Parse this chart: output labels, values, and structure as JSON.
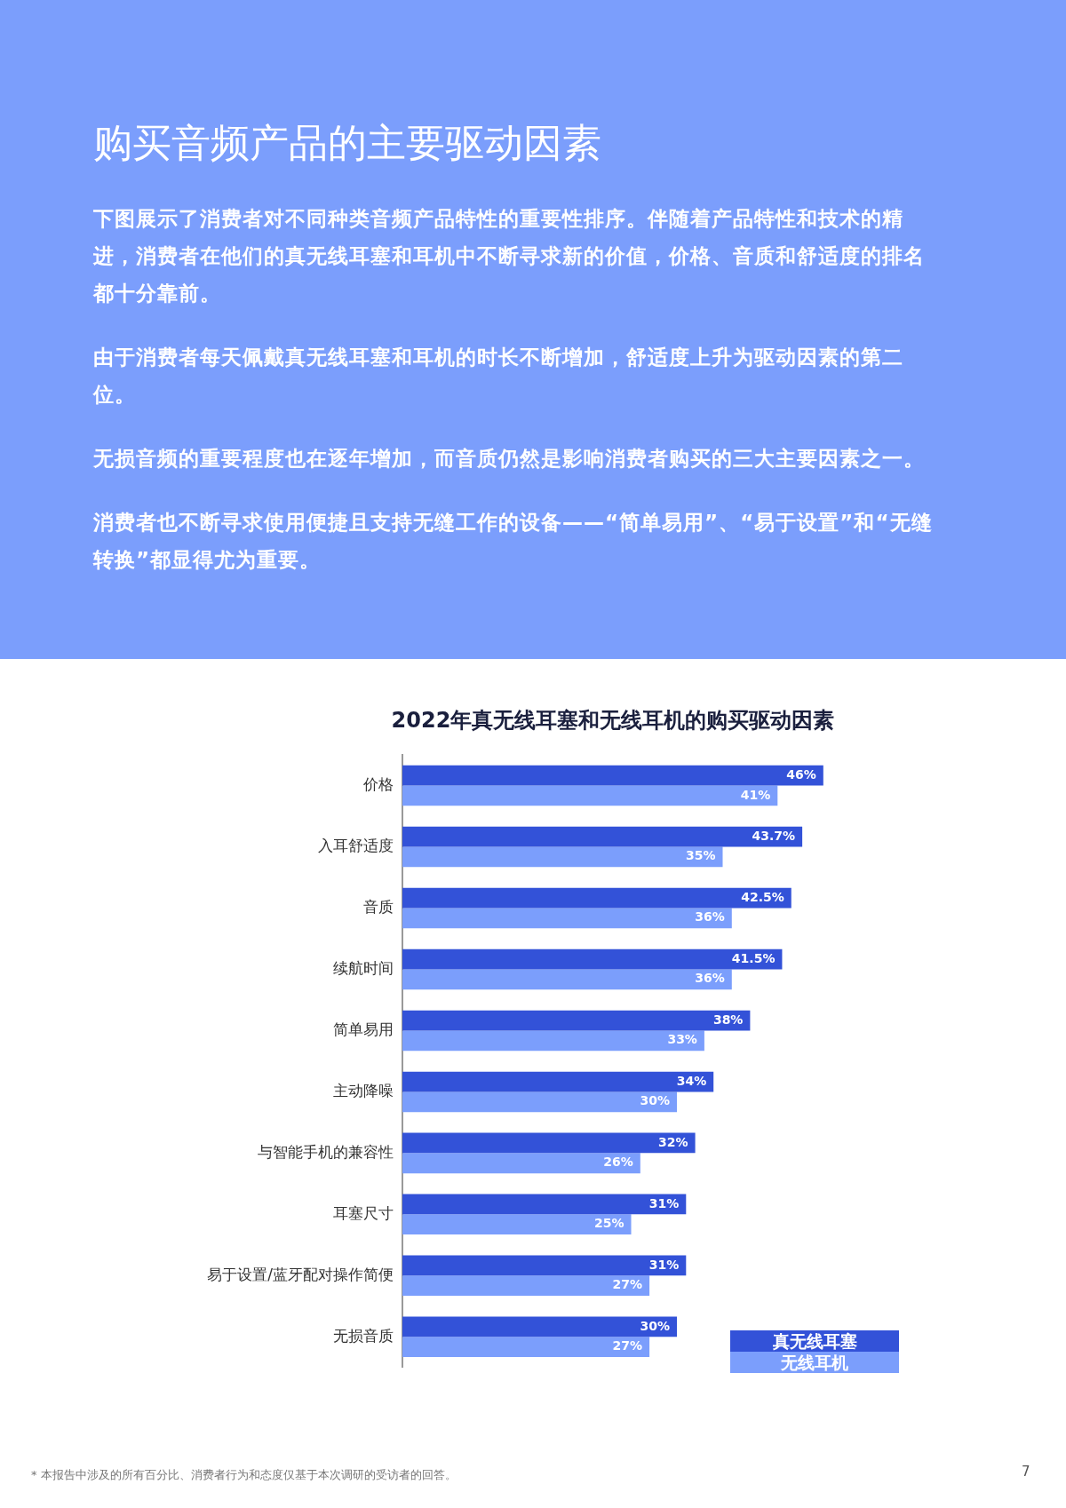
{
  "chart_data": {
    "type": "bar",
    "orientation": "horizontal",
    "title": "2022年真无线耳塞和无线耳机的购买驱动因素",
    "subtitle": "购买音频产品的主要驱动因素",
    "annotations": [
      "下图展示了消费者对不同种类音频产品特性的重要性排序。伴随着产品特性和技术的精进，消费者在他们的真无线耳塞和耳机中不断寻求新的价值，价格、音质和舒适度的排名都十分靠前。",
      "由于消费者每天佩戴真无线耳塞和耳机的时长不断增加，舒适度上升为驱动因素的第二位。",
      "无损音频的重要程度也在逐年增加，而音质仍然是影响消费者购买的三大主要因素之一。",
      "消费者也不断寻求使用便捷且支持无缝工作的设备——“简单易用”、“易于设置”和“无缝转换”都显得尤为重要。",
      "* 本报告中涉及的所有百分比、消费者行为和态度仅基于本次调研的受访者的回答。",
      "7"
    ],
    "categories": [
      "价格",
      "入耳舒适度",
      "音质",
      "续航时间",
      "简单易用",
      "主动降噪",
      "与智能手机的兼容性",
      "耳塞尺寸",
      "易于设置/蓝牙配对操作简便",
      "无损音质"
    ],
    "series": [
      {
        "name": "真无线耳塞",
        "color": "#3352d8",
        "values": [
          46,
          43.7,
          42.5,
          41.5,
          38,
          34,
          32,
          31,
          31,
          30
        ],
        "value_labels": [
          "46%",
          "43.7%",
          "42.5%",
          "41.5%",
          "38%",
          "34%",
          "32%",
          "31%",
          "31%",
          "30%"
        ]
      },
      {
        "name": "无线耳机",
        "color": "#7b9efc",
        "values": [
          41,
          35,
          36,
          36,
          33,
          30,
          26,
          25,
          27,
          27
        ],
        "value_labels": [
          "41%",
          "35%",
          "36%",
          "36%",
          "33%",
          "30%",
          "26%",
          "25%",
          "27%",
          "27%"
        ]
      }
    ],
    "legend": "bottom right",
    "grid": false
  }
}
